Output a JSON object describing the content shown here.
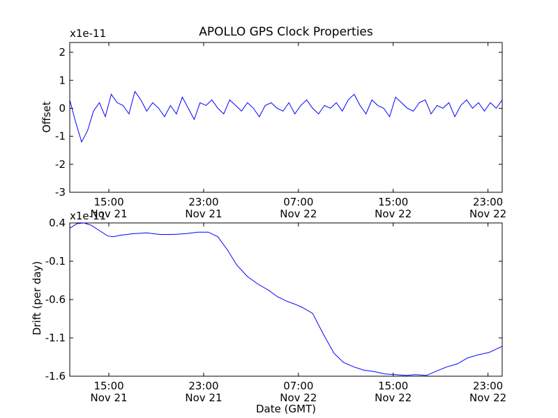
{
  "chart_data": [
    {
      "type": "line",
      "title": "APOLLO GPS Clock Properties",
      "ylabel": "Offset",
      "y_multiplier": "x1e-11",
      "ylim": [
        -3,
        2.35
      ],
      "y_ticks": [
        "2",
        "1",
        "0",
        "-1",
        "-2",
        "-3"
      ],
      "y_tick_values": [
        2,
        1,
        0,
        -1,
        -2,
        -3
      ],
      "xlim_hours": [
        11.7,
        48.2
      ],
      "x_ticks": [
        {
          "hour": 15,
          "time": "15:00",
          "date": "Nov 21"
        },
        {
          "hour": 23,
          "time": "23:00",
          "date": "Nov 21"
        },
        {
          "hour": 31,
          "time": "07:00",
          "date": "Nov 22"
        },
        {
          "hour": 39,
          "time": "15:00",
          "date": "Nov 22"
        },
        {
          "hour": 47,
          "time": "23:00",
          "date": "Nov 22"
        }
      ],
      "series": [
        {
          "color": "#0000ff",
          "x_hours": [
            11.7,
            12.2,
            12.7,
            13.2,
            13.7,
            14.2,
            14.7,
            15.2,
            15.7,
            16.2,
            16.7,
            17.2,
            17.7,
            18.2,
            18.7,
            19.2,
            19.7,
            20.2,
            20.7,
            21.2,
            21.7,
            22.2,
            22.7,
            23.2,
            23.7,
            24.2,
            24.7,
            25.2,
            25.7,
            26.2,
            26.7,
            27.2,
            27.7,
            28.2,
            28.7,
            29.2,
            29.7,
            30.2,
            30.7,
            31.2,
            31.7,
            32.2,
            32.7,
            33.2,
            33.7,
            34.2,
            34.7,
            35.2,
            35.7,
            36.2,
            36.7,
            37.2,
            37.7,
            38.2,
            38.7,
            39.2,
            39.7,
            40.2,
            40.7,
            41.2,
            41.7,
            42.2,
            42.7,
            43.2,
            43.7,
            44.2,
            44.7,
            45.2,
            45.7,
            46.2,
            46.7,
            47.2,
            47.7,
            48.2
          ],
          "values": [
            0.3,
            -0.5,
            -1.2,
            -0.8,
            -0.1,
            0.2,
            -0.3,
            0.5,
            0.2,
            0.1,
            -0.2,
            0.6,
            0.3,
            -0.1,
            0.2,
            0.0,
            -0.3,
            0.1,
            -0.2,
            0.4,
            0.0,
            -0.4,
            0.2,
            0.1,
            0.3,
            0.0,
            -0.2,
            0.3,
            0.1,
            -0.1,
            0.2,
            0.0,
            -0.3,
            0.1,
            0.2,
            0.0,
            -0.1,
            0.2,
            -0.2,
            0.1,
            0.3,
            0.0,
            -0.2,
            0.1,
            0.0,
            0.2,
            -0.1,
            0.3,
            0.5,
            0.1,
            -0.2,
            0.3,
            0.1,
            0.0,
            -0.3,
            0.4,
            0.2,
            0.0,
            -0.1,
            0.2,
            0.3,
            -0.2,
            0.1,
            0.0,
            0.2,
            -0.3,
            0.1,
            0.3,
            0.0,
            0.2,
            -0.1,
            0.2,
            0.0,
            0.3
          ]
        }
      ]
    },
    {
      "type": "line",
      "title": "",
      "xlabel": "Date (GMT)",
      "ylabel": "Drift (per day)",
      "y_multiplier": "x1e-11",
      "ylim": [
        -1.6,
        0.4
      ],
      "y_ticks": [
        "0.4",
        "-0.1",
        "-0.6",
        "-1.1",
        "-1.6"
      ],
      "y_tick_values": [
        0.4,
        -0.1,
        -0.6,
        -1.1,
        -1.6
      ],
      "xlim_hours": [
        11.7,
        48.2
      ],
      "x_ticks": [
        {
          "hour": 15,
          "time": "15:00",
          "date": "Nov 21"
        },
        {
          "hour": 23,
          "time": "23:00",
          "date": "Nov 21"
        },
        {
          "hour": 31,
          "time": "07:00",
          "date": "Nov 22"
        },
        {
          "hour": 39,
          "time": "15:00",
          "date": "Nov 22"
        },
        {
          "hour": 47,
          "time": "23:00",
          "date": "Nov 22"
        }
      ],
      "series": [
        {
          "color": "#0000ff",
          "x_hours": [
            11.7,
            12.3,
            12.9,
            13.5,
            14.2,
            14.9,
            15.4,
            16.0,
            17.1,
            18.2,
            19.3,
            20.4,
            21.5,
            22.5,
            23.4,
            24.2,
            25.0,
            25.8,
            26.7,
            27.6,
            28.5,
            29.2,
            30.0,
            30.7,
            31.3,
            32.2,
            33.1,
            34.0,
            34.8,
            35.7,
            36.5,
            37.4,
            38.3,
            39.2,
            40.1,
            40.9,
            41.8,
            42.7,
            43.5,
            44.4,
            45.3,
            46.2,
            47.1,
            48.2
          ],
          "values": [
            0.33,
            0.39,
            0.4,
            0.37,
            0.3,
            0.23,
            0.22,
            0.24,
            0.26,
            0.27,
            0.25,
            0.25,
            0.26,
            0.28,
            0.28,
            0.22,
            0.05,
            -0.15,
            -0.3,
            -0.4,
            -0.48,
            -0.56,
            -0.62,
            -0.66,
            -0.7,
            -0.78,
            -1.05,
            -1.3,
            -1.42,
            -1.48,
            -1.52,
            -1.54,
            -1.57,
            -1.58,
            -1.59,
            -1.58,
            -1.59,
            -1.53,
            -1.48,
            -1.44,
            -1.36,
            -1.32,
            -1.29,
            -1.21
          ]
        }
      ]
    }
  ]
}
